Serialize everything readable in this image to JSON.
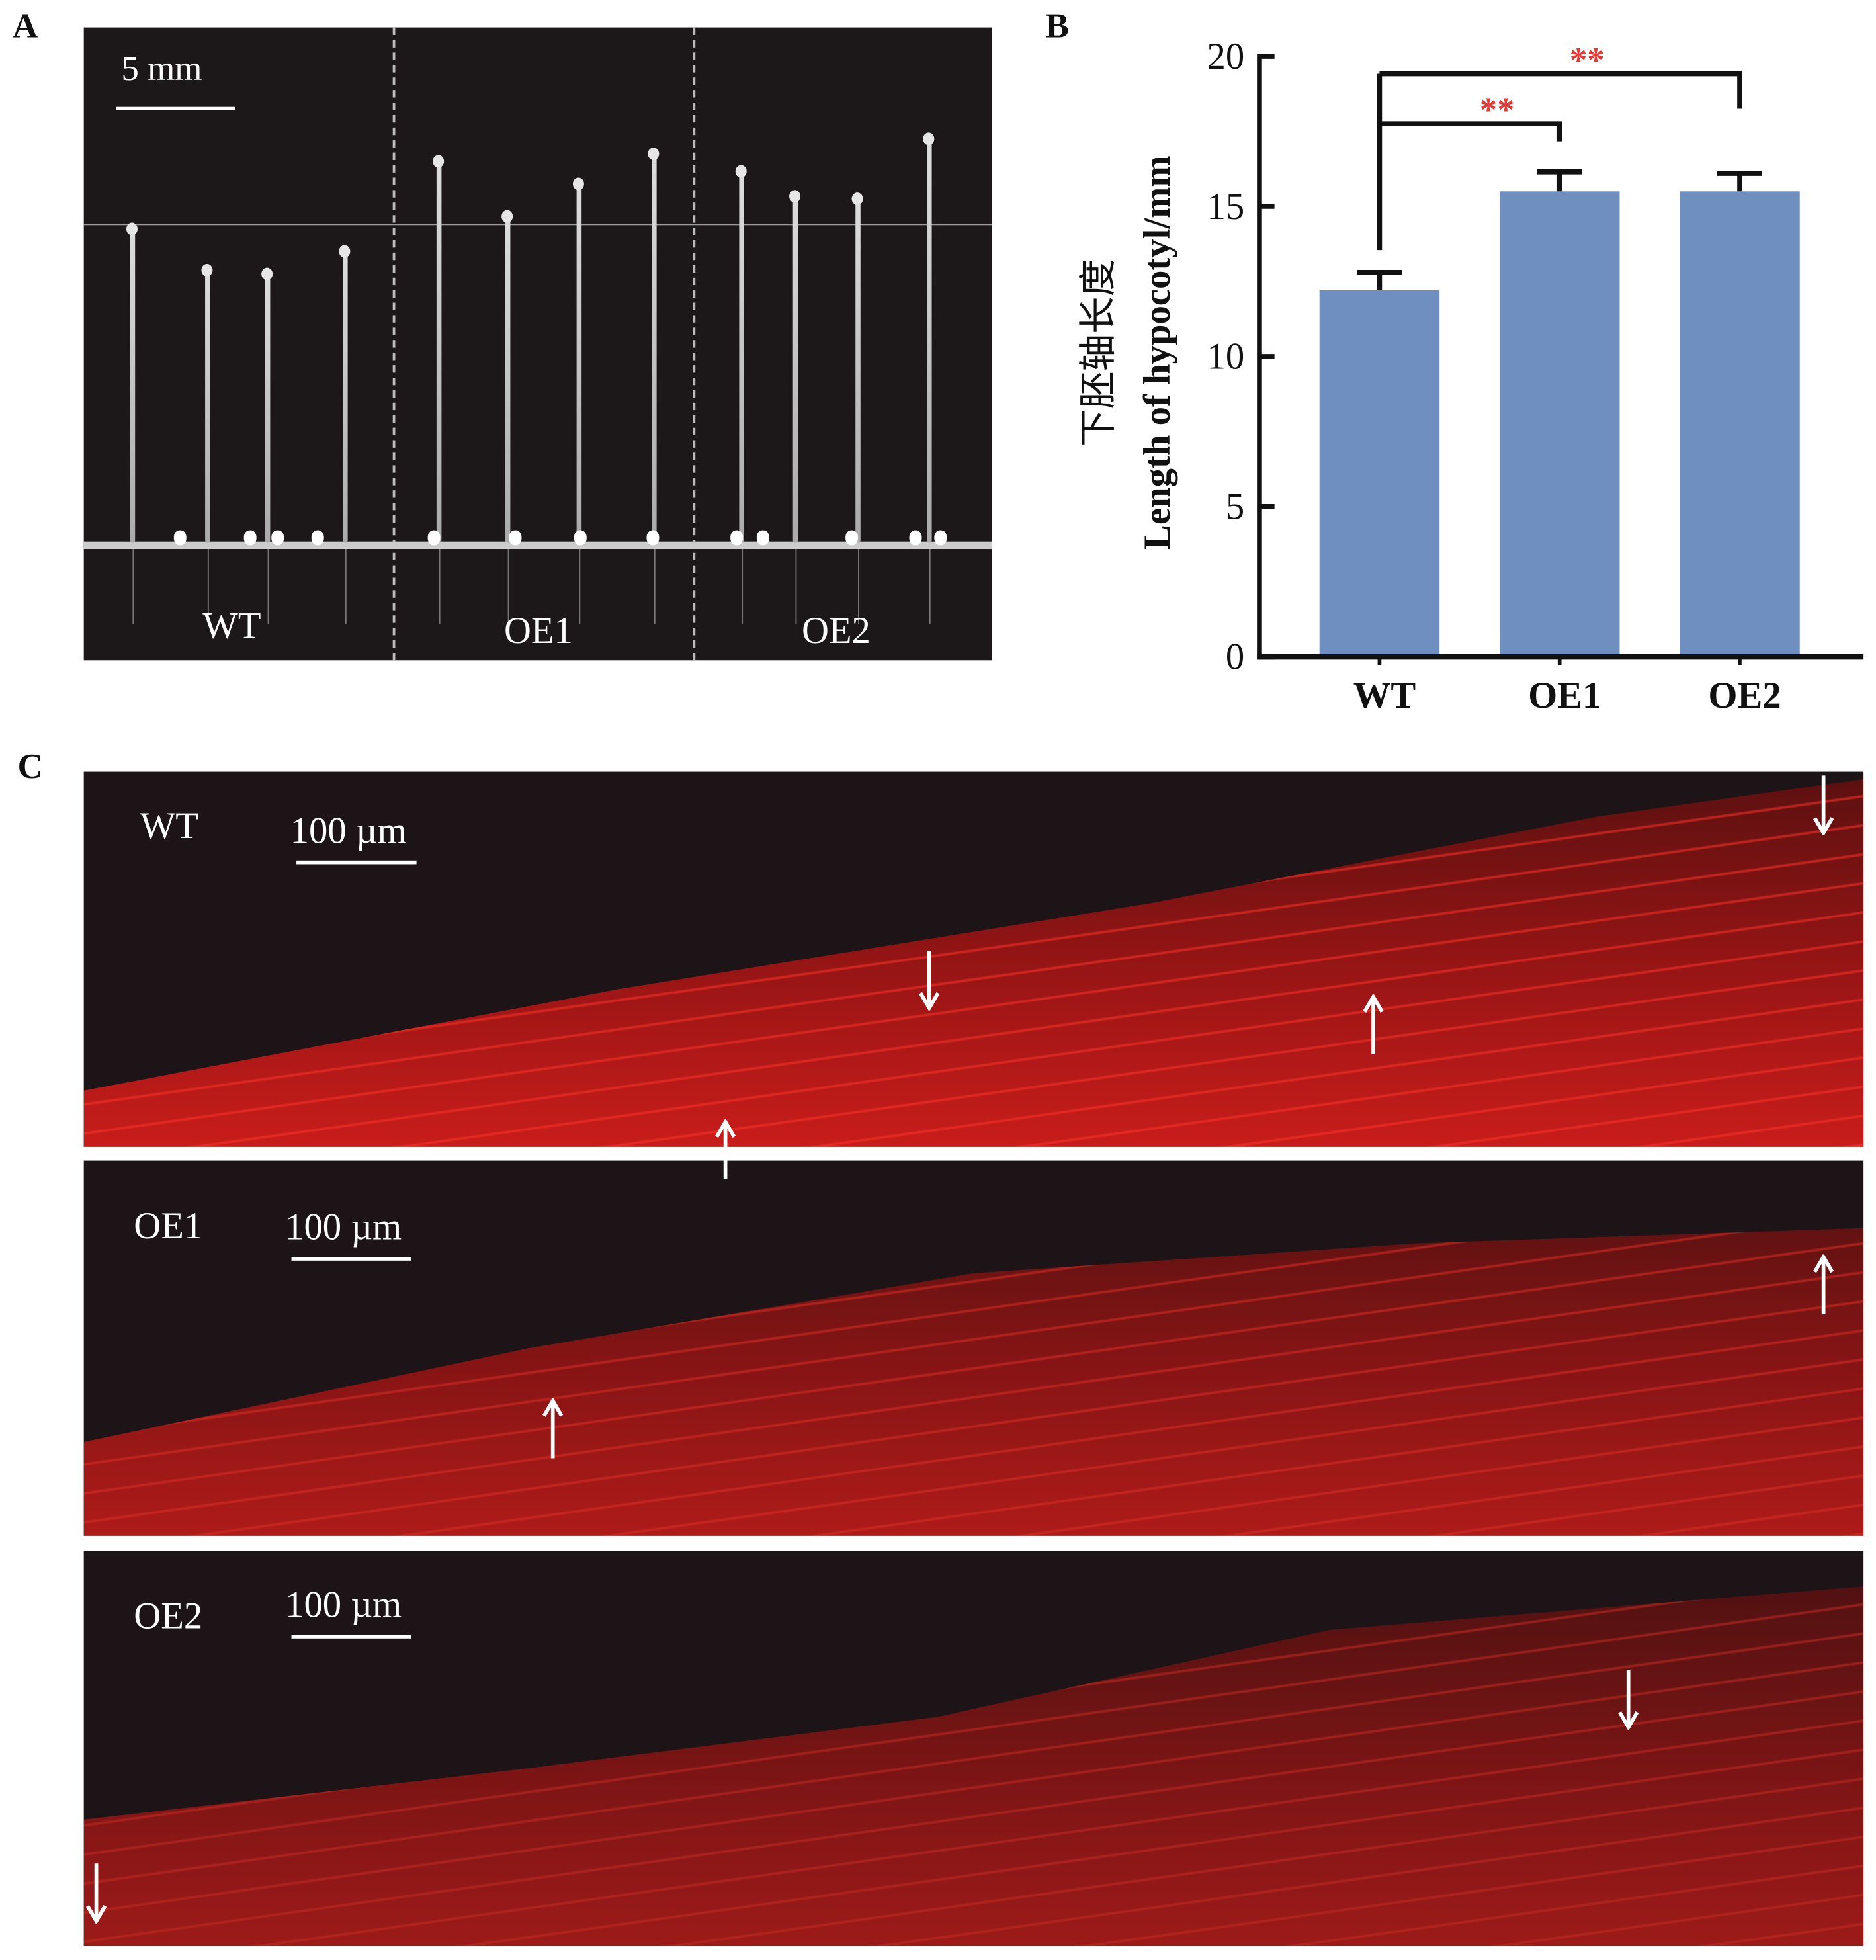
{
  "panel_labels": {
    "a": "A",
    "b": "B",
    "c": "C"
  },
  "panel_a": {
    "scale_bar": "5 mm",
    "groups": [
      "WT",
      "OE1",
      "OE2"
    ]
  },
  "panel_c": {
    "rows": [
      {
        "label": "WT",
        "scale_bar": "100 µm"
      },
      {
        "label": "OE1",
        "scale_bar": "100 µm"
      },
      {
        "label": "OE2",
        "scale_bar": "100 µm"
      }
    ]
  },
  "chart_data": {
    "type": "bar",
    "categories": [
      "WT",
      "OE1",
      "OE2"
    ],
    "values": [
      12.2,
      15.5,
      15.5
    ],
    "error": [
      0.6,
      0.65,
      0.6
    ],
    "ylabel_cn": "下胚轴长度",
    "ylabel": "Length of hypocotyl/mm",
    "xlabel": "",
    "ylim": [
      0,
      20
    ],
    "yticks": [
      0,
      5,
      10,
      15,
      20
    ],
    "bar_color": "#6e8fbf",
    "significance": [
      {
        "from": "WT",
        "to": "OE1",
        "label": "**"
      },
      {
        "from": "WT",
        "to": "OE2",
        "label": "**"
      }
    ],
    "significance_color": "#e53935",
    "grid": false
  }
}
